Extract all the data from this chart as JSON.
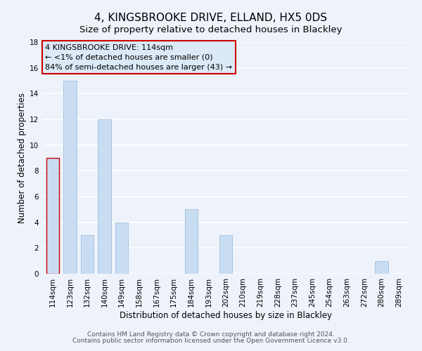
{
  "title": "4, KINGSBROOKE DRIVE, ELLAND, HX5 0DS",
  "subtitle": "Size of property relative to detached houses in Blackley",
  "xlabel": "Distribution of detached houses by size in Blackley",
  "ylabel": "Number of detached properties",
  "bin_labels": [
    "114sqm",
    "123sqm",
    "132sqm",
    "140sqm",
    "149sqm",
    "158sqm",
    "167sqm",
    "175sqm",
    "184sqm",
    "193sqm",
    "202sqm",
    "210sqm",
    "219sqm",
    "228sqm",
    "237sqm",
    "245sqm",
    "254sqm",
    "263sqm",
    "272sqm",
    "280sqm",
    "289sqm"
  ],
  "bar_values": [
    9,
    15,
    3,
    12,
    4,
    0,
    0,
    0,
    5,
    0,
    3,
    0,
    0,
    0,
    0,
    0,
    0,
    0,
    0,
    1,
    0
  ],
  "bar_color": "#c9ddf2",
  "bar_edge_color": "#a8c4e0",
  "highlight_index": 0,
  "annotation_box_edge_color": "#cc0000",
  "annotation_box_face_color": "#dce9f7",
  "annotation_lines": [
    "4 KINGSBROOKE DRIVE: 114sqm",
    "← <1% of detached houses are smaller (0)",
    "84% of semi-detached houses are larger (43) →"
  ],
  "ylim": [
    0,
    18
  ],
  "yticks": [
    0,
    2,
    4,
    6,
    8,
    10,
    12,
    14,
    16,
    18
  ],
  "footer_lines": [
    "Contains HM Land Registry data © Crown copyright and database right 2024.",
    "Contains public sector information licensed under the Open Government Licence v3.0."
  ],
  "background_color": "#eef2fa",
  "grid_color": "#ffffff",
  "title_fontsize": 11,
  "subtitle_fontsize": 9.5,
  "axis_label_fontsize": 8.5,
  "tick_fontsize": 7.5,
  "annotation_fontsize": 8,
  "footer_fontsize": 6.5
}
